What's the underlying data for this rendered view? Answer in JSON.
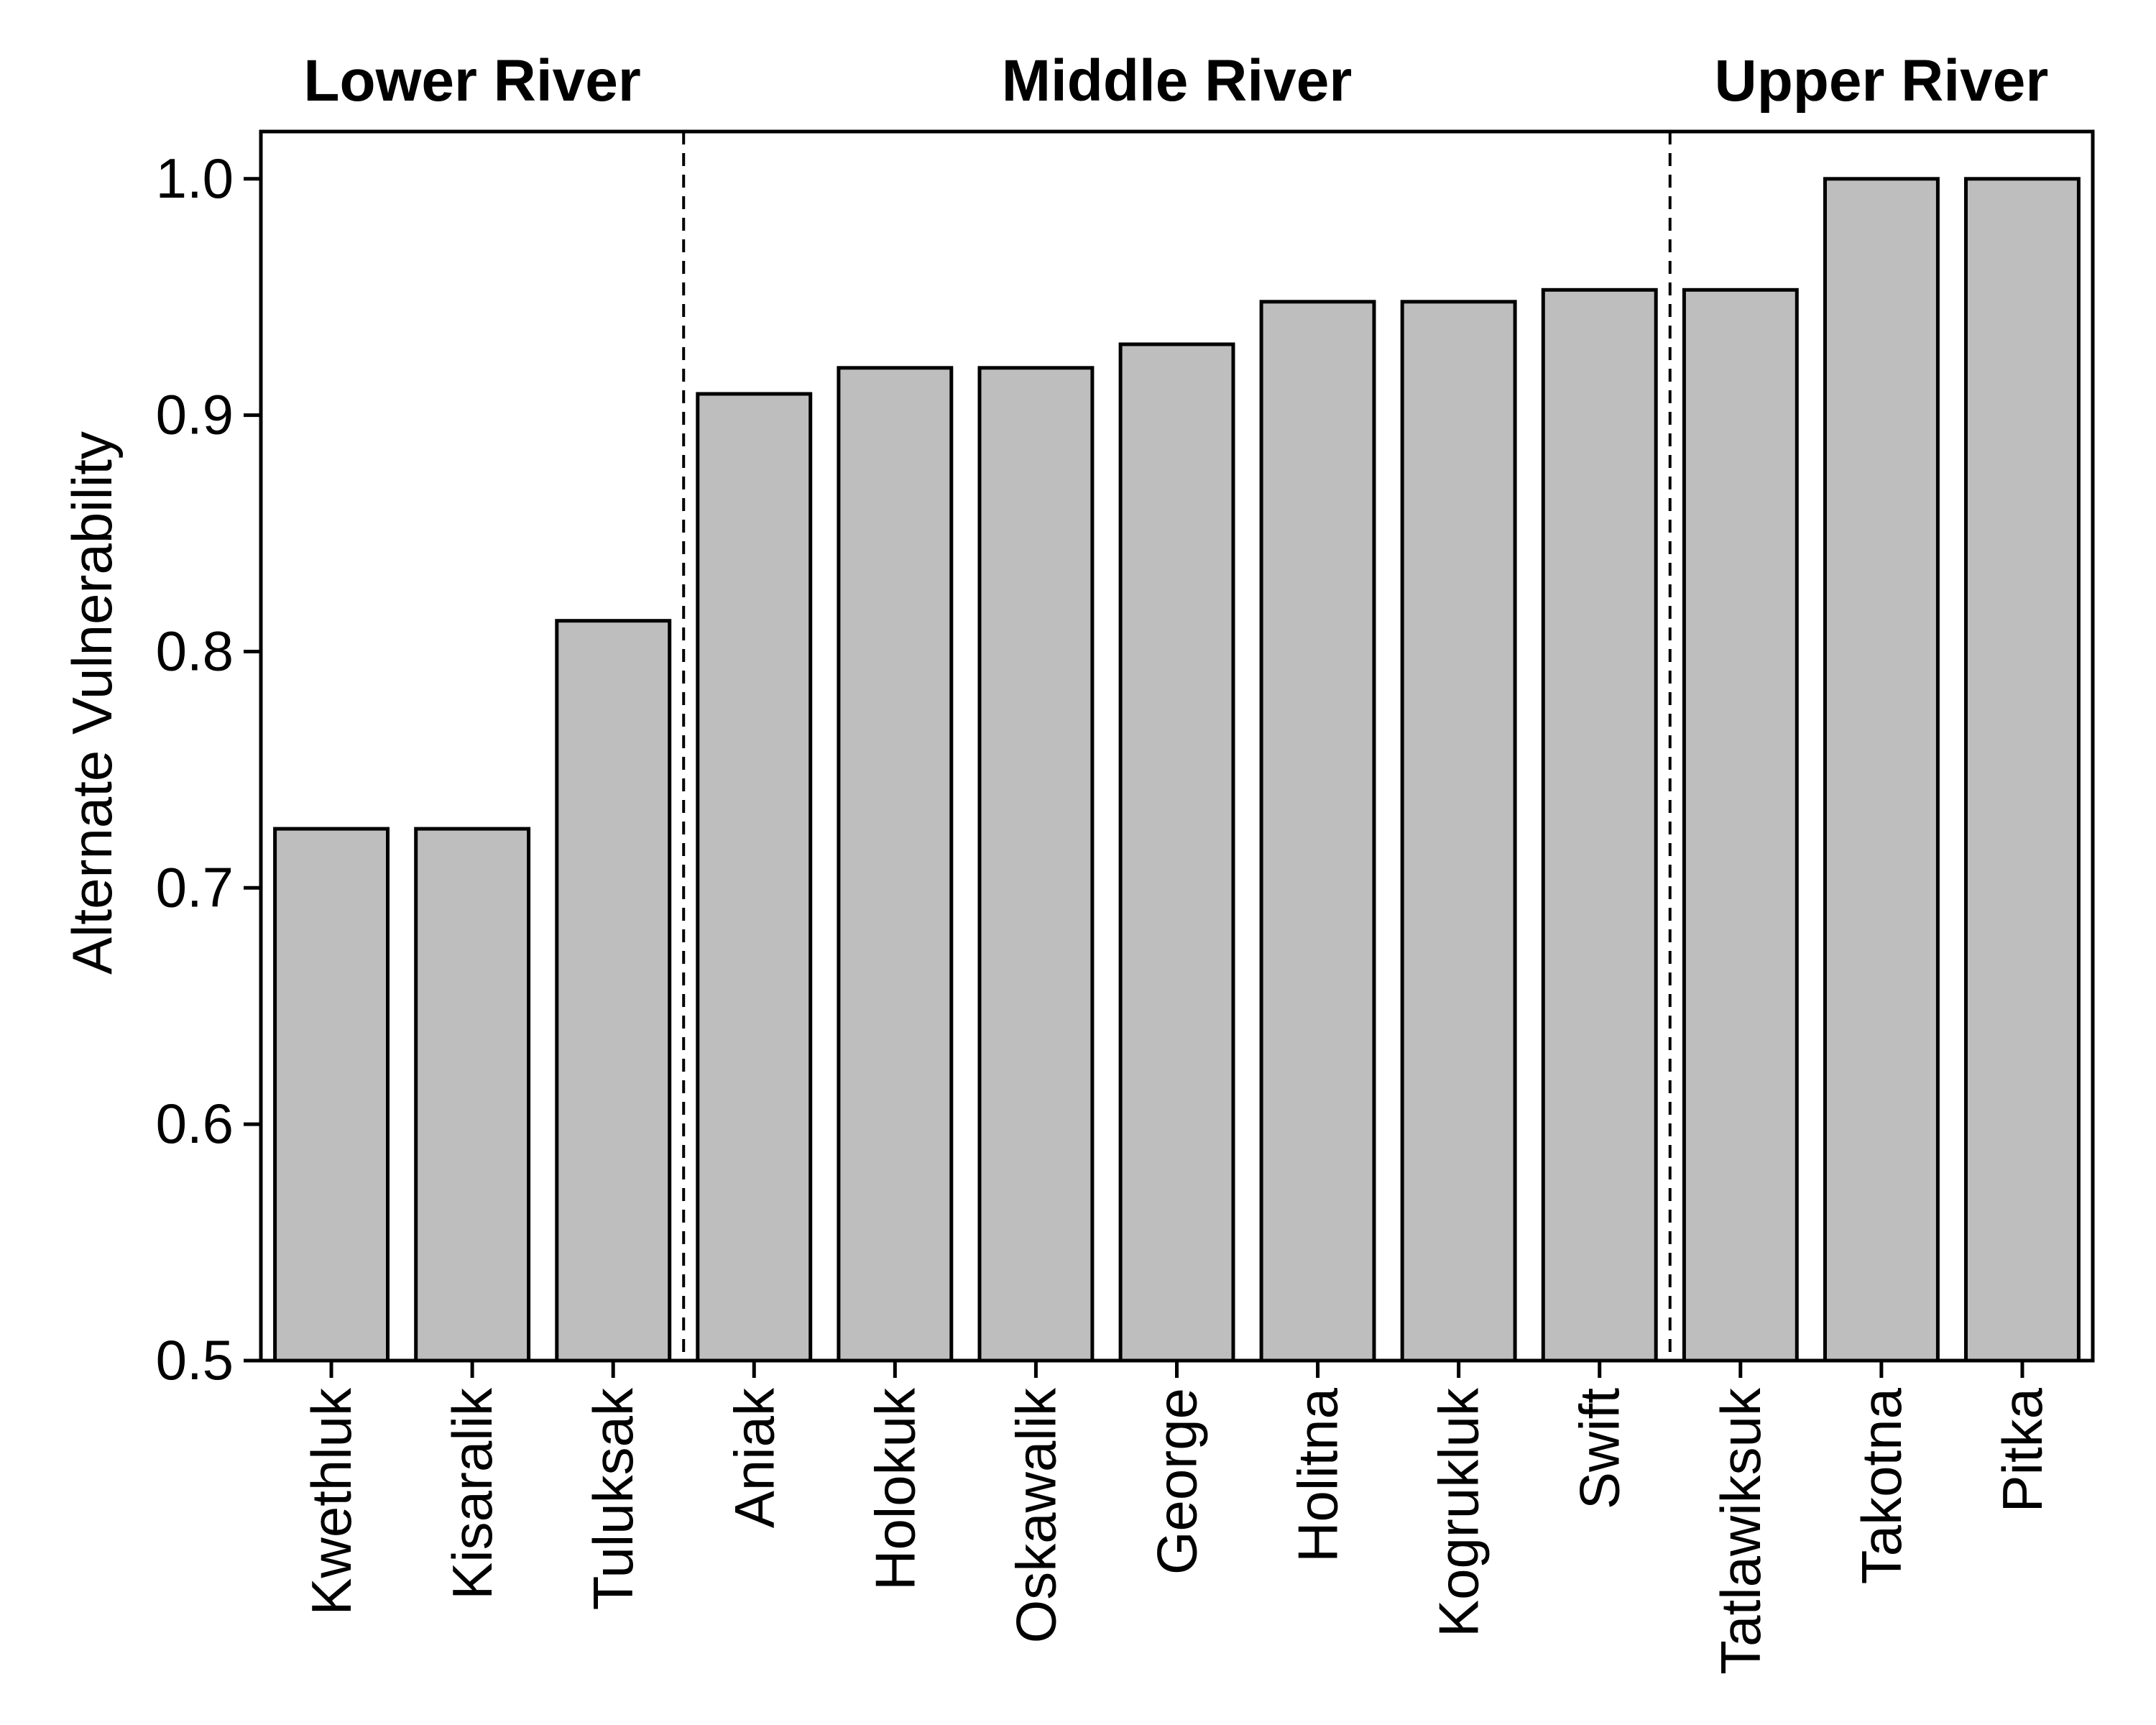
{
  "chart_data": {
    "type": "bar",
    "ylabel": "Alternate Vulnerability",
    "xlabel": "",
    "ylim": [
      0.5,
      1.02
    ],
    "yticks": [
      "0.5",
      "0.6",
      "0.7",
      "0.8",
      "0.9",
      "1.0"
    ],
    "grid": false,
    "categories": [
      "Kwethluk",
      "Kisaralik",
      "Tuluksak",
      "Aniak",
      "Holokuk",
      "Oskawalik",
      "George",
      "Holitna",
      "Kogrukluk",
      "Swift",
      "Tatlawiksuk",
      "Takotna",
      "Pitka"
    ],
    "values": [
      0.725,
      0.725,
      0.813,
      0.909,
      0.92,
      0.92,
      0.93,
      0.948,
      0.948,
      0.953,
      0.953,
      1.0,
      1.0
    ],
    "groups": [
      {
        "label": "Lower River",
        "categories": [
          "Kwethluk",
          "Kisaralik",
          "Tuluksak"
        ]
      },
      {
        "label": "Middle River",
        "categories": [
          "Aniak",
          "Holokuk",
          "Oskawalik",
          "George",
          "Holitna",
          "Kogrukluk",
          "Swift"
        ]
      },
      {
        "label": "Upper River",
        "categories": [
          "Tatlawiksuk",
          "Takotna",
          "Pitka"
        ]
      }
    ],
    "bar_color": "#bebebe",
    "edge_color": "#000000"
  }
}
